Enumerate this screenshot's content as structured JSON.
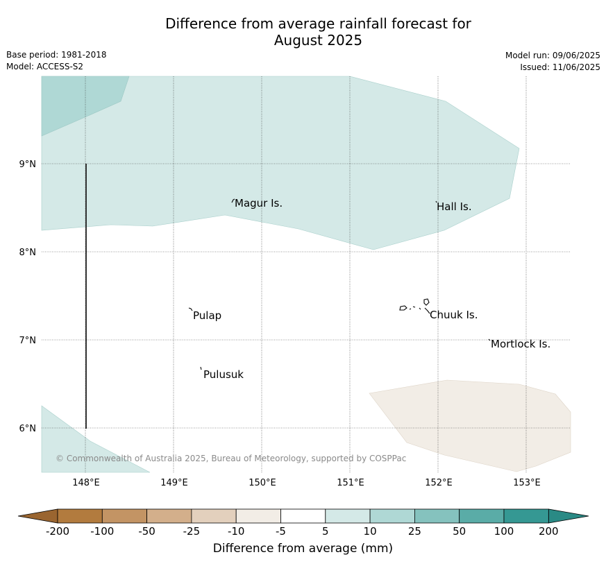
{
  "title_line1": "Difference from average rainfall forecast for",
  "title_line2": "August 2025",
  "meta": {
    "base_period": "Base period: 1981-2018",
    "model": "Model: ACCESS-S2",
    "model_run": "Model run: 09/06/2025",
    "issued": "Issued: 11/06/2025"
  },
  "map": {
    "lon_ticks": [
      "148°E",
      "149°E",
      "150°E",
      "151°E",
      "152°E",
      "153°E"
    ],
    "lat_ticks": [
      "9°N",
      "8°N",
      "7°N",
      "6°N"
    ],
    "places": [
      "Magur Is.",
      "Hall Is.",
      "Pulap",
      "Chuuk Is.",
      "Mortlock Is.",
      "Pulusuk"
    ],
    "copyright": "© Commonwealth of Australia 2025, Bureau of Meteorology, supported by COSPPac",
    "colors": {
      "light_teal": "#d4e9e7",
      "mid_teal": "#afd8d5",
      "light_brown": "#f2ede6"
    }
  },
  "colorbar": {
    "tick_labels": [
      "-200",
      "-100",
      "-50",
      "-25",
      "-10",
      "-5",
      "5",
      "10",
      "25",
      "50",
      "100",
      "200"
    ],
    "colors": [
      "#b27b3e",
      "#c39464",
      "#d3af8b",
      "#e3d0bd",
      "#f2ede6",
      "#ffffff",
      "#d4e9e7",
      "#afd8d5",
      "#85c2be",
      "#5aaca7",
      "#359893"
    ],
    "under_color": "#9a6530",
    "over_color": "#2a8a85",
    "label": "Difference from average (mm)"
  }
}
